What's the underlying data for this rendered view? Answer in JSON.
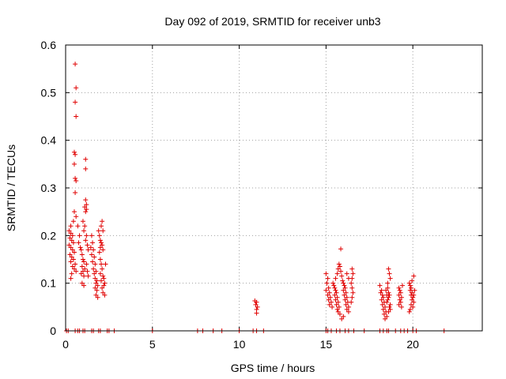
{
  "chart_data": {
    "type": "scatter",
    "title": "Day 092 of 2019, SRMTID for receiver unb3",
    "xlabel": "GPS time / hours",
    "ylabel": "SRMTID / TECUs",
    "xlim": [
      0,
      24
    ],
    "ylim": [
      0,
      0.6
    ],
    "x_ticks": [
      0,
      5,
      10,
      15,
      20
    ],
    "y_ticks": [
      0,
      0.1,
      0.2,
      0.3,
      0.4,
      0.5,
      0.6
    ],
    "x_tick_labels": [
      "0",
      "5",
      "10",
      "15",
      "20"
    ],
    "y_tick_labels": [
      "0",
      "0.1",
      "0.2",
      "0.3",
      "0.4",
      "0.5",
      "0.6"
    ],
    "grid": true,
    "marker": "+",
    "marker_color": "#e00000",
    "series": [
      {
        "name": "SRMTID",
        "points": [
          [
            0.55,
            0.56
          ],
          [
            0.6,
            0.51
          ],
          [
            0.55,
            0.48
          ],
          [
            0.6,
            0.45
          ],
          [
            0.5,
            0.375
          ],
          [
            0.55,
            0.37
          ],
          [
            0.5,
            0.35
          ],
          [
            0.55,
            0.32
          ],
          [
            0.6,
            0.315
          ],
          [
            0.55,
            0.29
          ],
          [
            0.5,
            0.25
          ],
          [
            0.6,
            0.24
          ],
          [
            0.45,
            0.23
          ],
          [
            0.3,
            0.22
          ],
          [
            0.2,
            0.21
          ],
          [
            0.3,
            0.205
          ],
          [
            0.4,
            0.2
          ],
          [
            0.25,
            0.195
          ],
          [
            0.35,
            0.19
          ],
          [
            0.45,
            0.185
          ],
          [
            0.2,
            0.18
          ],
          [
            0.3,
            0.175
          ],
          [
            0.4,
            0.17
          ],
          [
            0.5,
            0.165
          ],
          [
            0.25,
            0.16
          ],
          [
            0.35,
            0.155
          ],
          [
            0.45,
            0.15
          ],
          [
            0.3,
            0.145
          ],
          [
            0.55,
            0.14
          ],
          [
            0.4,
            0.135
          ],
          [
            0.5,
            0.13
          ],
          [
            0.6,
            0.125
          ],
          [
            0.35,
            0.12
          ],
          [
            0.3,
            0.11
          ],
          [
            0.7,
            0.22
          ],
          [
            0.8,
            0.2
          ],
          [
            0.75,
            0.185
          ],
          [
            0.85,
            0.175
          ],
          [
            0.9,
            0.17
          ],
          [
            0.95,
            0.16
          ],
          [
            1.0,
            0.15
          ],
          [
            1.05,
            0.145
          ],
          [
            0.95,
            0.135
          ],
          [
            1.1,
            0.13
          ],
          [
            1.0,
            0.125
          ],
          [
            0.9,
            0.12
          ],
          [
            1.05,
            0.115
          ],
          [
            0.95,
            0.1
          ],
          [
            1.05,
            0.095
          ],
          [
            1.15,
            0.36
          ],
          [
            1.15,
            0.34
          ],
          [
            1.15,
            0.275
          ],
          [
            1.2,
            0.265
          ],
          [
            1.1,
            0.26
          ],
          [
            1.2,
            0.255
          ],
          [
            1.15,
            0.25
          ],
          [
            1.0,
            0.23
          ],
          [
            1.1,
            0.22
          ],
          [
            1.05,
            0.21
          ],
          [
            1.2,
            0.2
          ],
          [
            1.15,
            0.19
          ],
          [
            1.25,
            0.18
          ],
          [
            1.3,
            0.17
          ],
          [
            1.2,
            0.14
          ],
          [
            1.25,
            0.125
          ],
          [
            1.3,
            0.115
          ],
          [
            1.5,
            0.2
          ],
          [
            1.55,
            0.185
          ],
          [
            1.45,
            0.175
          ],
          [
            1.6,
            0.17
          ],
          [
            1.5,
            0.16
          ],
          [
            1.65,
            0.155
          ],
          [
            1.55,
            0.145
          ],
          [
            1.7,
            0.14
          ],
          [
            1.6,
            0.13
          ],
          [
            1.75,
            0.125
          ],
          [
            1.65,
            0.12
          ],
          [
            1.7,
            0.11
          ],
          [
            1.8,
            0.105
          ],
          [
            1.75,
            0.1
          ],
          [
            1.85,
            0.095
          ],
          [
            1.7,
            0.09
          ],
          [
            1.8,
            0.085
          ],
          [
            1.75,
            0.075
          ],
          [
            1.85,
            0.07
          ],
          [
            1.9,
            0.21
          ],
          [
            1.95,
            0.2
          ],
          [
            2.0,
            0.19
          ],
          [
            2.05,
            0.185
          ],
          [
            2.1,
            0.18
          ],
          [
            2.0,
            0.175
          ],
          [
            2.15,
            0.17
          ],
          [
            2.1,
            0.23
          ],
          [
            2.05,
            0.22
          ],
          [
            2.15,
            0.21
          ],
          [
            1.95,
            0.165
          ],
          [
            2.0,
            0.15
          ],
          [
            2.05,
            0.14
          ],
          [
            2.1,
            0.13
          ],
          [
            2.0,
            0.12
          ],
          [
            2.15,
            0.115
          ],
          [
            2.2,
            0.11
          ],
          [
            2.05,
            0.105
          ],
          [
            2.25,
            0.1
          ],
          [
            2.2,
            0.095
          ],
          [
            2.1,
            0.09
          ],
          [
            2.15,
            0.08
          ],
          [
            2.25,
            0.075
          ],
          [
            2.3,
            0.14
          ],
          [
            10.9,
            0.063
          ],
          [
            11.0,
            0.06
          ],
          [
            10.95,
            0.055
          ],
          [
            11.05,
            0.05
          ],
          [
            11.0,
            0.045
          ],
          [
            11.0,
            0.037
          ],
          [
            15.0,
            0.12
          ],
          [
            15.1,
            0.11
          ],
          [
            15.05,
            0.1
          ],
          [
            15.15,
            0.09
          ],
          [
            15.0,
            0.085
          ],
          [
            15.2,
            0.08
          ],
          [
            15.1,
            0.075
          ],
          [
            15.25,
            0.07
          ],
          [
            15.15,
            0.065
          ],
          [
            15.3,
            0.06
          ],
          [
            15.2,
            0.055
          ],
          [
            15.35,
            0.05
          ],
          [
            15.4,
            0.1
          ],
          [
            15.45,
            0.095
          ],
          [
            15.5,
            0.09
          ],
          [
            15.55,
            0.085
          ],
          [
            15.6,
            0.08
          ],
          [
            15.5,
            0.075
          ],
          [
            15.65,
            0.07
          ],
          [
            15.55,
            0.065
          ],
          [
            15.7,
            0.06
          ],
          [
            15.6,
            0.055
          ],
          [
            15.75,
            0.05
          ],
          [
            15.65,
            0.045
          ],
          [
            15.7,
            0.04
          ],
          [
            15.8,
            0.035
          ],
          [
            15.55,
            0.11
          ],
          [
            15.65,
            0.12
          ],
          [
            15.7,
            0.13
          ],
          [
            15.75,
            0.14
          ],
          [
            15.8,
            0.135
          ],
          [
            15.85,
            0.125
          ],
          [
            15.9,
            0.115
          ],
          [
            15.85,
            0.172
          ],
          [
            15.95,
            0.105
          ],
          [
            16.0,
            0.1
          ],
          [
            16.05,
            0.095
          ],
          [
            16.1,
            0.09
          ],
          [
            16.0,
            0.085
          ],
          [
            16.15,
            0.08
          ],
          [
            16.05,
            0.075
          ],
          [
            16.2,
            0.07
          ],
          [
            16.1,
            0.065
          ],
          [
            16.25,
            0.06
          ],
          [
            16.15,
            0.055
          ],
          [
            16.3,
            0.05
          ],
          [
            16.2,
            0.045
          ],
          [
            16.3,
            0.04
          ],
          [
            16.0,
            0.03
          ],
          [
            15.9,
            0.025
          ],
          [
            16.2,
            0.12
          ],
          [
            16.3,
            0.11
          ],
          [
            16.5,
            0.13
          ],
          [
            16.55,
            0.12
          ],
          [
            16.5,
            0.11
          ],
          [
            16.45,
            0.1
          ],
          [
            16.5,
            0.09
          ],
          [
            16.55,
            0.08
          ],
          [
            16.5,
            0.07
          ],
          [
            16.45,
            0.06
          ],
          [
            18.1,
            0.095
          ],
          [
            18.2,
            0.085
          ],
          [
            18.15,
            0.08
          ],
          [
            18.25,
            0.075
          ],
          [
            18.3,
            0.07
          ],
          [
            18.2,
            0.065
          ],
          [
            18.35,
            0.06
          ],
          [
            18.25,
            0.055
          ],
          [
            18.4,
            0.05
          ],
          [
            18.3,
            0.045
          ],
          [
            18.45,
            0.04
          ],
          [
            18.35,
            0.035
          ],
          [
            18.5,
            0.03
          ],
          [
            18.4,
            0.025
          ],
          [
            18.5,
            0.06
          ],
          [
            18.55,
            0.065
          ],
          [
            18.6,
            0.07
          ],
          [
            18.65,
            0.075
          ],
          [
            18.6,
            0.08
          ],
          [
            18.55,
            0.09
          ],
          [
            18.6,
            0.13
          ],
          [
            18.65,
            0.12
          ],
          [
            18.7,
            0.11
          ],
          [
            18.55,
            0.1
          ],
          [
            18.7,
            0.055
          ],
          [
            18.65,
            0.05
          ],
          [
            18.7,
            0.045
          ],
          [
            18.6,
            0.04
          ],
          [
            18.5,
            0.075
          ],
          [
            18.45,
            0.085
          ],
          [
            19.2,
            0.09
          ],
          [
            19.25,
            0.085
          ],
          [
            19.3,
            0.08
          ],
          [
            19.2,
            0.075
          ],
          [
            19.35,
            0.07
          ],
          [
            19.25,
            0.065
          ],
          [
            19.3,
            0.06
          ],
          [
            19.2,
            0.055
          ],
          [
            19.35,
            0.05
          ],
          [
            19.4,
            0.095
          ],
          [
            19.8,
            0.1
          ],
          [
            19.85,
            0.095
          ],
          [
            19.9,
            0.09
          ],
          [
            19.85,
            0.085
          ],
          [
            19.95,
            0.08
          ],
          [
            19.9,
            0.075
          ],
          [
            20.0,
            0.07
          ],
          [
            19.95,
            0.065
          ],
          [
            20.05,
            0.06
          ],
          [
            19.9,
            0.055
          ],
          [
            20.0,
            0.05
          ],
          [
            19.85,
            0.045
          ],
          [
            19.8,
            0.04
          ],
          [
            20.05,
            0.115
          ],
          [
            19.95,
            0.105
          ],
          [
            20.1,
            0.085
          ],
          [
            20.05,
            0.075
          ],
          [
            0.05,
            0
          ],
          [
            0.15,
            0
          ],
          [
            0.55,
            0
          ],
          [
            0.7,
            0
          ],
          [
            0.8,
            0
          ],
          [
            1.0,
            0
          ],
          [
            1.1,
            0
          ],
          [
            1.5,
            0
          ],
          [
            1.6,
            0
          ],
          [
            1.9,
            0
          ],
          [
            2.0,
            0
          ],
          [
            2.4,
            0
          ],
          [
            2.5,
            0
          ],
          [
            2.8,
            0
          ],
          [
            5.0,
            0
          ],
          [
            7.6,
            0
          ],
          [
            7.9,
            0
          ],
          [
            8.5,
            0
          ],
          [
            9.0,
            0
          ],
          [
            10.0,
            0
          ],
          [
            10.8,
            0
          ],
          [
            11.0,
            0
          ],
          [
            11.4,
            0
          ],
          [
            15.0,
            0
          ],
          [
            15.1,
            0
          ],
          [
            15.3,
            0
          ],
          [
            15.6,
            0
          ],
          [
            15.8,
            0
          ],
          [
            16.1,
            0
          ],
          [
            16.3,
            0
          ],
          [
            16.6,
            0
          ],
          [
            17.2,
            0
          ],
          [
            18.1,
            0
          ],
          [
            18.3,
            0
          ],
          [
            18.5,
            0
          ],
          [
            18.6,
            0
          ],
          [
            19.0,
            0
          ],
          [
            19.3,
            0
          ],
          [
            19.5,
            0
          ],
          [
            19.7,
            0
          ],
          [
            20.0,
            0
          ],
          [
            20.2,
            0
          ],
          [
            21.8,
            0
          ]
        ]
      }
    ]
  }
}
